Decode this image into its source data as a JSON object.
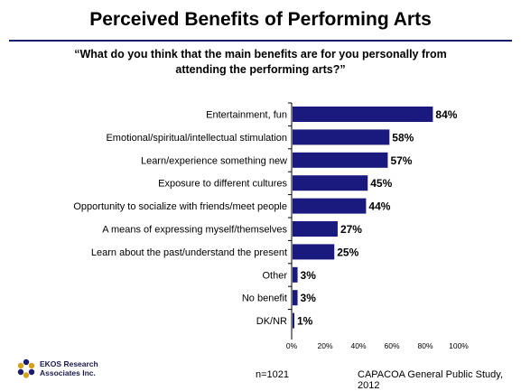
{
  "title": "Perceived Benefits of Performing Arts",
  "subtitle": "“What do you think that the main benefits are for you personally from attending the performing arts?”",
  "footer": {
    "sample": "n=1021",
    "source": "CAPACOA General Public Study, 2012",
    "logo_line1": "EKOS Research",
    "logo_line2": "Associates Inc."
  },
  "colors": {
    "bar": "#1a1a7e",
    "title_rule": "#1a1a6e"
  },
  "chart_data": {
    "type": "bar",
    "orientation": "horizontal",
    "categories": [
      "Entertainment, fun",
      "Emotional/spiritual/intellectual stimulation",
      "Learn/experience something new",
      "Exposure to different cultures",
      "Opportunity to socialize with friends/meet people",
      "A means of expressing myself/themselves",
      "Learn about the past/understand the present",
      "Other",
      "No benefit",
      "DK/NR"
    ],
    "values": [
      84,
      58,
      57,
      45,
      44,
      27,
      25,
      3,
      3,
      1
    ],
    "value_labels": [
      "84%",
      "58%",
      "57%",
      "45%",
      "44%",
      "27%",
      "25%",
      "3%",
      "3%",
      "1%"
    ],
    "xlim": [
      0,
      100
    ],
    "xticks": [
      "0%",
      "20%",
      "40%",
      "60%",
      "80%",
      "100%"
    ],
    "grid": false
  }
}
